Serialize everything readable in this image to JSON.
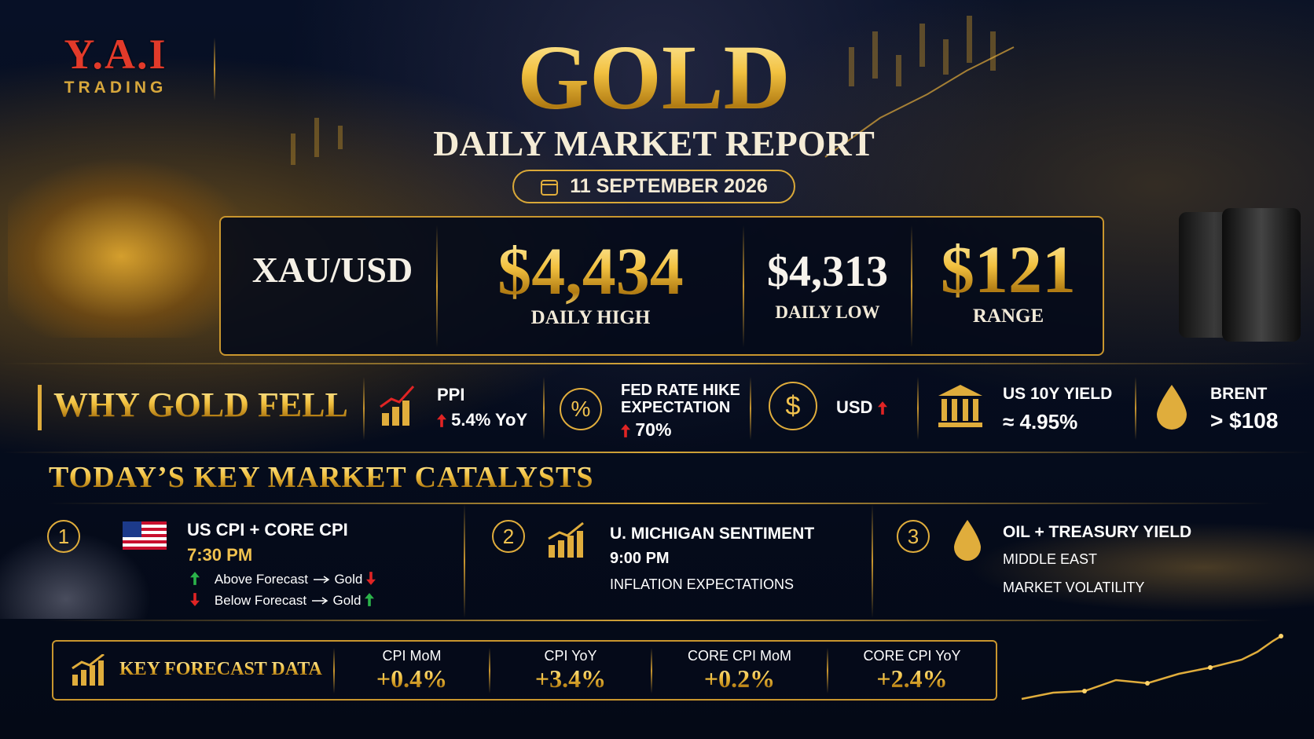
{
  "logo": {
    "brand": "Y.A.I",
    "tagline": "TRADING"
  },
  "header": {
    "title": "GOLD",
    "subtitle": "DAILY MARKET REPORT",
    "date": "11 SEPTEMBER 2026"
  },
  "price_panel": {
    "symbol": "XAU/USD",
    "stats": [
      {
        "value": "$4,434",
        "label": "DAILY HIGH"
      },
      {
        "value": "$4,313",
        "label": "DAILY LOW"
      },
      {
        "value": "$121",
        "label": "RANGE"
      }
    ]
  },
  "why": {
    "title": "WHY GOLD FELL",
    "factors": [
      {
        "label": "PPI",
        "detail": "5.4% YoY"
      },
      {
        "label": "FED RATE HIKE EXPECTATION",
        "detail": "70%"
      },
      {
        "label": "USD"
      },
      {
        "label": "US 10Y YIELD",
        "detail": "≈ 4.95%"
      },
      {
        "label": "BRENT",
        "detail": "> $108"
      }
    ]
  },
  "catalysts": {
    "title": "TODAY’S KEY MARKET CATALYSTS",
    "items": [
      {
        "number": "1",
        "title": "US CPI + CORE CPI",
        "time": "7:30 PM",
        "rules": [
          {
            "condition": "Above Forecast",
            "result": "Gold"
          },
          {
            "condition": "Below Forecast",
            "result": "Gold"
          }
        ]
      },
      {
        "number": "2",
        "title": "U. MICHIGAN SENTIMENT",
        "time": "9:00 PM",
        "lines": [
          "INFLATION EXPECTATIONS"
        ]
      },
      {
        "number": "3",
        "title": "OIL + TREASURY YIELD",
        "lines": [
          "MIDDLE EAST",
          "MARKET VOLATILITY"
        ]
      }
    ]
  },
  "forecast": {
    "title": "KEY FORECAST DATA",
    "items": [
      {
        "label": "CPI MoM",
        "value": "+0.4%"
      },
      {
        "label": "CPI YoY",
        "value": "+3.4%"
      },
      {
        "label": "CORE CPI MoM",
        "value": "+0.2%"
      },
      {
        "label": "CORE CPI YoY",
        "value": "+2.4%"
      }
    ]
  }
}
